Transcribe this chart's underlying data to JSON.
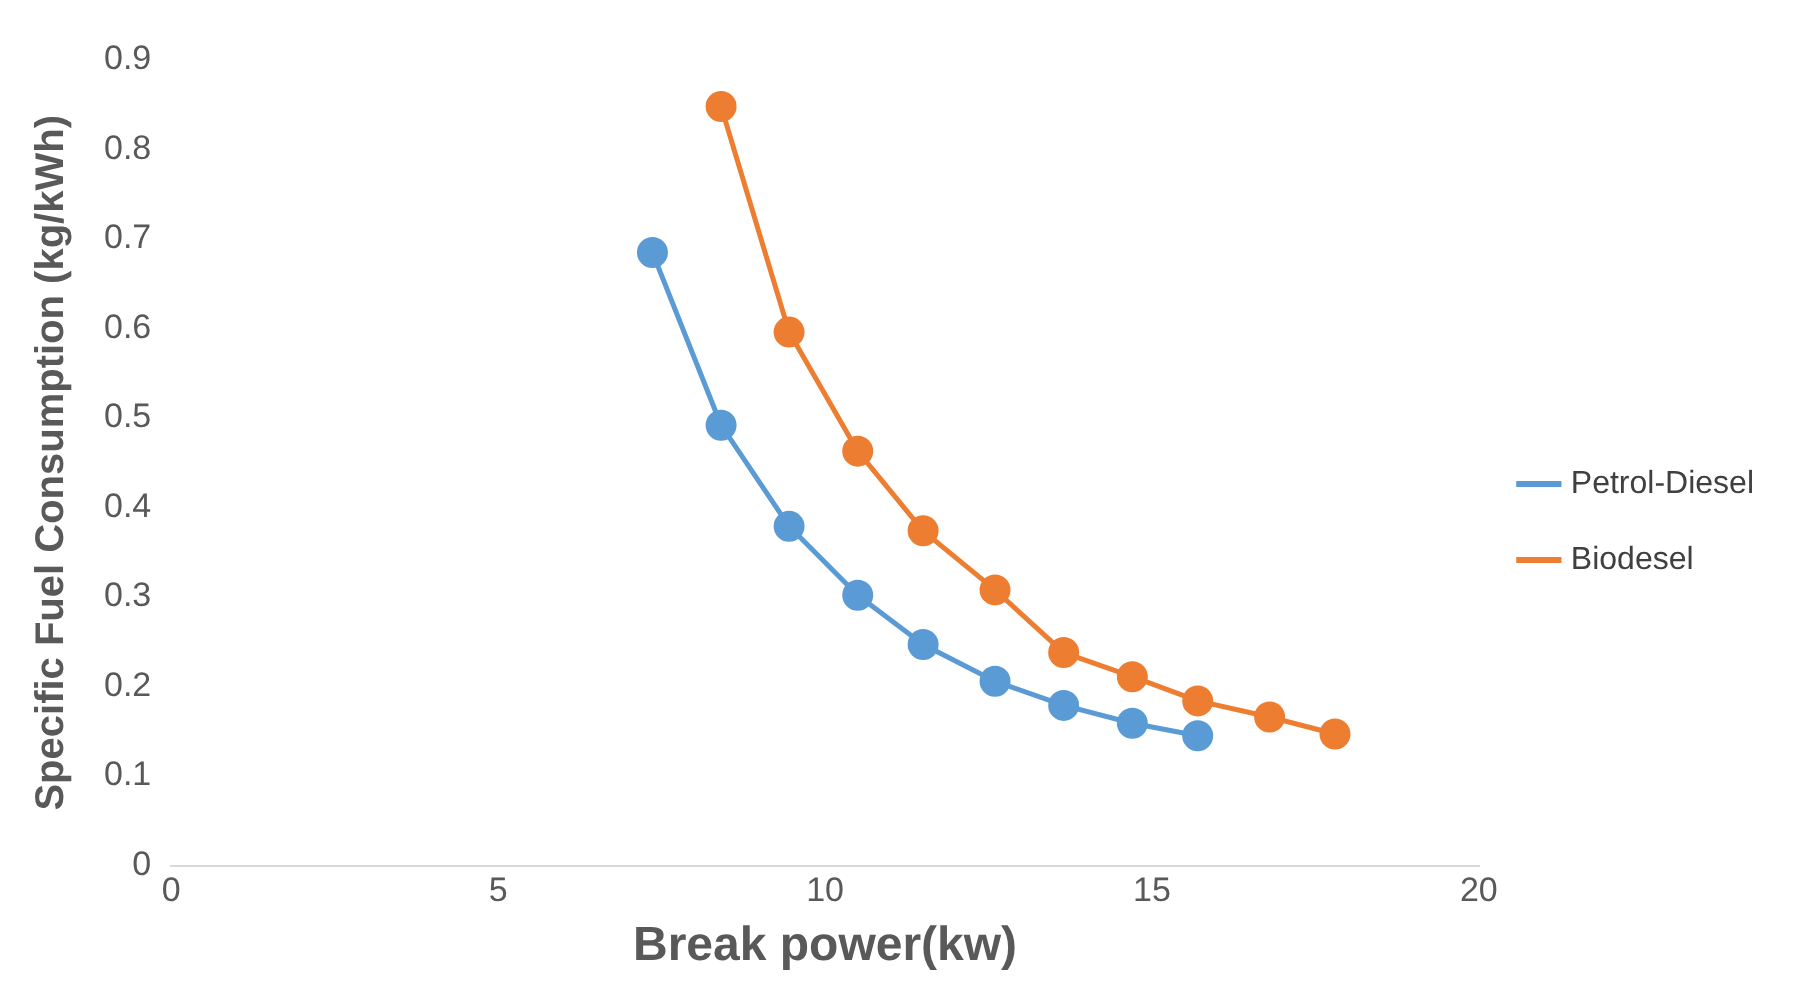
{
  "chart_data": {
    "type": "line",
    "xlabel": "Break power(kw)",
    "ylabel": "Specific Fuel Consumption (kg/kWh)",
    "xlim": [
      0,
      20
    ],
    "xticks": [
      0,
      5,
      10,
      15,
      20
    ],
    "ylim": [
      0,
      0.9
    ],
    "yticks": [
      0,
      0.1,
      0.2,
      0.3,
      0.4,
      0.5,
      0.6,
      0.7,
      0.8,
      0.9
    ],
    "grid": false,
    "legend": "right",
    "marker": "circle",
    "line_style": "solid",
    "series": [
      {
        "name": "Petrol-Diesel",
        "color": "#5b9bd5",
        "x": [
          7.36,
          8.41,
          9.45,
          10.5,
          11.5,
          12.6,
          13.65,
          14.7,
          15.7
        ],
        "values": [
          0.685,
          0.492,
          0.379,
          0.302,
          0.247,
          0.206,
          0.179,
          0.159,
          0.145
        ]
      },
      {
        "name": "Biodesel",
        "color": "#ed7d31",
        "x": [
          8.41,
          9.45,
          10.5,
          11.5,
          12.6,
          13.65,
          14.7,
          15.7,
          16.8,
          17.8
        ],
        "values": [
          0.848,
          0.596,
          0.463,
          0.374,
          0.308,
          0.238,
          0.211,
          0.184,
          0.166,
          0.147
        ]
      }
    ]
  }
}
